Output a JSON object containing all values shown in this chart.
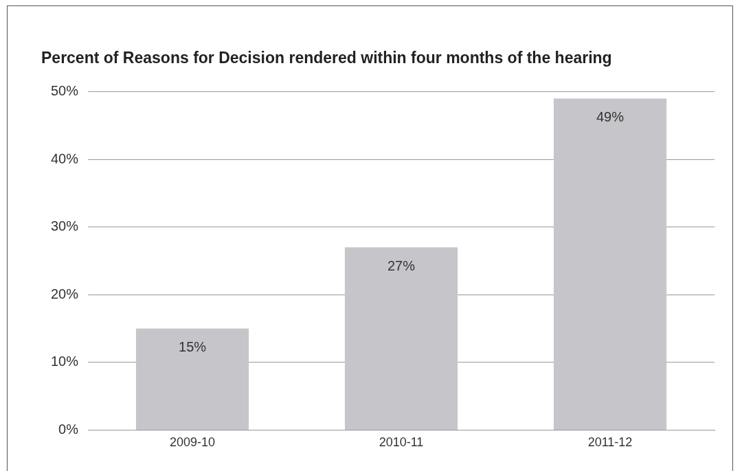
{
  "chart_data": {
    "type": "bar",
    "title": "Percent of Reasons for Decision rendered within four months of the hearing",
    "categories": [
      "2009-10",
      "2010-11",
      "2011-12"
    ],
    "values": [
      15,
      27,
      49
    ],
    "color": "#c6c5ca",
    "value_labels": [
      "15%",
      "27%",
      "49%"
    ],
    "ylim": [
      0,
      50
    ],
    "yticks": [
      {
        "value": 0,
        "label": "0%"
      },
      {
        "value": 10,
        "label": "10%"
      },
      {
        "value": 20,
        "label": "20%"
      },
      {
        "value": 30,
        "label": "30%"
      },
      {
        "value": 40,
        "label": "40%"
      },
      {
        "value": 50,
        "label": "50%"
      }
    ],
    "grid": "y",
    "legend": false
  }
}
